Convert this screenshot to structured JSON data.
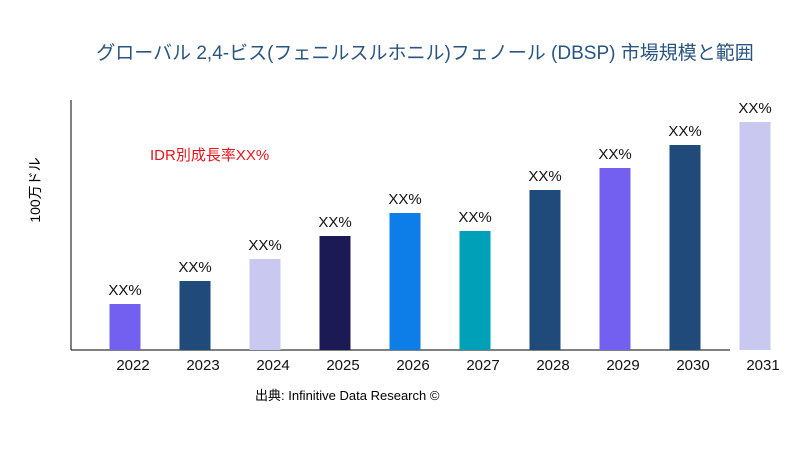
{
  "chart_data": {
    "type": "bar",
    "title": "グローバル 2,4-ビス(フェニルスルホニル)フェノール (DBSP) 市場規模と範囲",
    "ylabel": "100万ドル",
    "xlabel": "",
    "annotation": "IDR別成長率XX%",
    "source": "出典: Infinitive Data Research ©",
    "categories": [
      "2022",
      "2023",
      "2024",
      "2025",
      "2026",
      "2027",
      "2028",
      "2029",
      "2030",
      "2031"
    ],
    "values": [
      46,
      69,
      91,
      114,
      137,
      119,
      160,
      182,
      205,
      228
    ],
    "data_labels": [
      "XX%",
      "XX%",
      "XX%",
      "XX%",
      "XX%",
      "XX%",
      "XX%",
      "XX%",
      "XX%",
      "XX%"
    ],
    "colors": [
      "#7360f0",
      "#1f4a7a",
      "#c8c8f0",
      "#1c1a55",
      "#0d7de8",
      "#00a0b8",
      "#1f4a7a",
      "#7360f0",
      "#1f4a7a",
      "#c8c8f0"
    ],
    "ylim": [
      0,
      250
    ],
    "grid": false,
    "legend": "none"
  }
}
